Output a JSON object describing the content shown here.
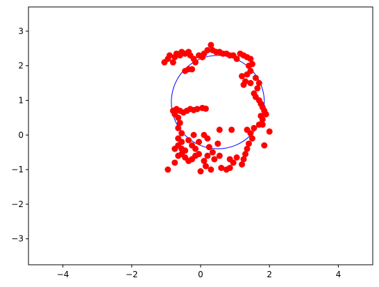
{
  "chart_data": {
    "type": "scatter",
    "title": "",
    "xlabel": "",
    "ylabel": "",
    "xlim": [
      -5,
      5
    ],
    "ylim": [
      -3.75,
      3.7
    ],
    "xticks": [
      -4,
      -2,
      0,
      2,
      4
    ],
    "yticks": [
      -3,
      -2,
      -1,
      0,
      1,
      2,
      3
    ],
    "xtick_labels": [
      "−4",
      "−2",
      "0",
      "2",
      "4"
    ],
    "ytick_labels": [
      "−3",
      "−2",
      "−1",
      "0",
      "1",
      "2",
      "3"
    ],
    "grid": false,
    "legend": "none",
    "point_color": "#ff0000",
    "circle": {
      "cx": 0.5,
      "cy": 0.95,
      "r": 1.35,
      "color": "#0000ff"
    },
    "points": [
      [
        -1.05,
        2.1
      ],
      [
        -0.95,
        2.2
      ],
      [
        -0.9,
        2.3
      ],
      [
        -0.8,
        2.1
      ],
      [
        -0.75,
        2.25
      ],
      [
        -0.7,
        2.35
      ],
      [
        -0.6,
        2.3
      ],
      [
        -0.55,
        2.4
      ],
      [
        -0.45,
        2.35
      ],
      [
        -0.35,
        2.4
      ],
      [
        -0.3,
        2.3
      ],
      [
        -0.2,
        2.2
      ],
      [
        -0.15,
        2.1
      ],
      [
        -0.05,
        2.3
      ],
      [
        0.05,
        2.25
      ],
      [
        0.1,
        2.35
      ],
      [
        -0.45,
        1.85
      ],
      [
        -0.35,
        1.9
      ],
      [
        -0.25,
        1.9
      ],
      [
        0.2,
        2.45
      ],
      [
        0.3,
        2.6
      ],
      [
        0.35,
        2.45
      ],
      [
        0.45,
        2.4
      ],
      [
        0.55,
        2.4
      ],
      [
        0.65,
        2.35
      ],
      [
        0.75,
        2.35
      ],
      [
        0.85,
        2.3
      ],
      [
        0.95,
        2.3
      ],
      [
        1.05,
        2.2
      ],
      [
        1.15,
        2.35
      ],
      [
        1.25,
        2.3
      ],
      [
        1.35,
        2.25
      ],
      [
        1.45,
        2.2
      ],
      [
        1.5,
        2.05
      ],
      [
        1.4,
        2.0
      ],
      [
        1.45,
        1.85
      ],
      [
        1.35,
        1.75
      ],
      [
        1.2,
        1.7
      ],
      [
        1.3,
        1.55
      ],
      [
        1.25,
        1.45
      ],
      [
        1.45,
        1.5
      ],
      [
        1.6,
        1.65
      ],
      [
        1.7,
        1.5
      ],
      [
        1.65,
        1.35
      ],
      [
        1.55,
        1.2
      ],
      [
        1.6,
        1.1
      ],
      [
        1.7,
        1.0
      ],
      [
        1.75,
        0.9
      ],
      [
        1.8,
        0.8
      ],
      [
        1.85,
        0.7
      ],
      [
        1.9,
        0.6
      ],
      [
        1.75,
        0.55
      ],
      [
        1.8,
        0.45
      ],
      [
        1.7,
        0.3
      ],
      [
        1.8,
        0.3
      ],
      [
        2.0,
        0.1
      ],
      [
        1.85,
        -0.3
      ],
      [
        1.55,
        0.2
      ],
      [
        1.45,
        0.05
      ],
      [
        1.5,
        -0.1
      ],
      [
        1.4,
        -0.25
      ],
      [
        1.35,
        -0.4
      ],
      [
        1.3,
        -0.55
      ],
      [
        1.25,
        -0.7
      ],
      [
        1.2,
        -0.85
      ],
      [
        1.05,
        -0.65
      ],
      [
        0.95,
        -0.8
      ],
      [
        0.85,
        -0.95
      ],
      [
        0.75,
        -1.0
      ],
      [
        0.6,
        -0.95
      ],
      [
        0.85,
        -0.7
      ],
      [
        0.55,
        -0.6
      ],
      [
        0.4,
        -0.7
      ],
      [
        0.3,
        -1.0
      ],
      [
        0.15,
        -0.9
      ],
      [
        0.0,
        -1.05
      ],
      [
        0.1,
        -0.75
      ],
      [
        0.2,
        -0.6
      ],
      [
        0.35,
        -0.5
      ],
      [
        -0.05,
        -0.55
      ],
      [
        -0.15,
        -0.6
      ],
      [
        -0.25,
        -0.7
      ],
      [
        -0.35,
        -0.75
      ],
      [
        -0.45,
        -0.65
      ],
      [
        -0.55,
        -0.55
      ],
      [
        -0.65,
        -0.6
      ],
      [
        -0.75,
        -0.4
      ],
      [
        -0.65,
        -0.3
      ],
      [
        -0.55,
        -0.4
      ],
      [
        -0.45,
        -0.45
      ],
      [
        -0.55,
        -0.2
      ],
      [
        -0.65,
        -0.1
      ],
      [
        -0.55,
        0.05
      ],
      [
        -0.65,
        0.2
      ],
      [
        -0.6,
        0.35
      ],
      [
        -0.65,
        0.5
      ],
      [
        -0.75,
        0.6
      ],
      [
        -0.8,
        0.7
      ],
      [
        -0.7,
        0.75
      ],
      [
        -0.6,
        0.7
      ],
      [
        -0.5,
        0.65
      ],
      [
        -0.4,
        0.7
      ],
      [
        -0.3,
        0.75
      ],
      [
        -0.2,
        0.72
      ],
      [
        -0.1,
        0.75
      ],
      [
        0.05,
        0.78
      ],
      [
        0.15,
        0.76
      ],
      [
        -0.35,
        -0.15
      ],
      [
        -0.25,
        -0.3
      ],
      [
        -0.15,
        -0.4
      ],
      [
        -0.05,
        -0.2
      ],
      [
        0.1,
        0.0
      ],
      [
        0.2,
        -0.1
      ],
      [
        -0.2,
        0.0
      ],
      [
        0.55,
        0.15
      ],
      [
        0.9,
        0.15
      ],
      [
        1.35,
        0.15
      ],
      [
        0.5,
        -0.25
      ],
      [
        -0.75,
        -0.8
      ],
      [
        -0.95,
        -1.0
      ],
      [
        0.25,
        -0.35
      ]
    ]
  }
}
